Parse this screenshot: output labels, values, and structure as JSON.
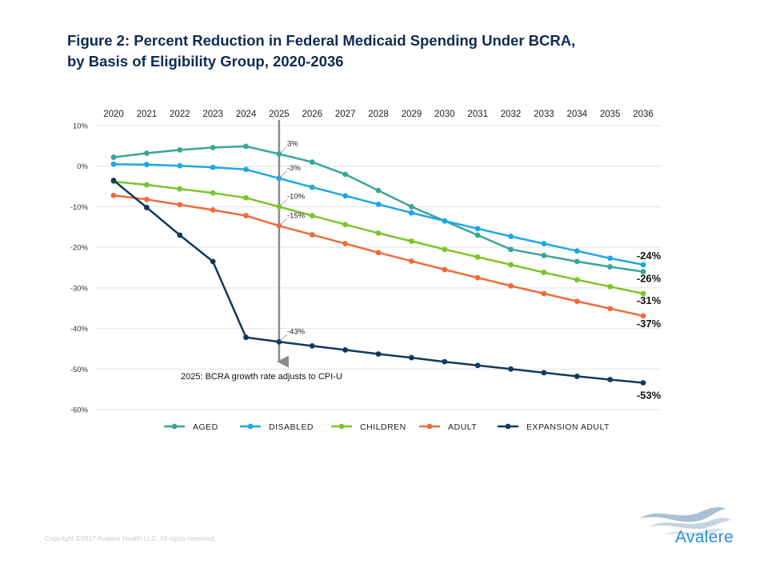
{
  "title_line1": "Figure 2: Percent Reduction in Federal Medicaid Spending Under BCRA,",
  "title_line2": "by Basis of Eligibility  Group, 2020-2036",
  "copyright": "Copyright ©2017  Avalere Health LLC. All rights reserved.",
  "brand": "Avalere",
  "colors": {
    "aged": "#3aa59a",
    "disabled": "#1ea7e4",
    "children": "#7ac52a",
    "adult": "#ef6c3a",
    "expansion_adult": "#12395e",
    "grid": "#e2e2e2",
    "marker_line": "#8c8c8c",
    "title": "#0f2b52"
  },
  "chart_data": {
    "type": "line",
    "title": "Figure 2: Percent Reduction in Federal Medicaid Spending Under BCRA, by Basis of Eligibility Group, 2020-2036",
    "x": [
      "2020",
      "2021",
      "2022",
      "2023",
      "2024",
      "2025",
      "2026",
      "2027",
      "2028",
      "2029",
      "2030",
      "2031",
      "2032",
      "2033",
      "2034",
      "2035",
      "2036"
    ],
    "xaxis_position": "top",
    "ylim": [
      -60,
      10
    ],
    "yticks": [
      10,
      0,
      -10,
      -20,
      -30,
      -40,
      -50,
      -60
    ],
    "ytick_labels": [
      "10%",
      "0%",
      "-10%",
      "-20%",
      "-30%",
      "-40%",
      "-50%",
      "-60%"
    ],
    "grid": true,
    "legend_position": "bottom",
    "series": [
      {
        "key": "aged",
        "name": "AGED",
        "values": [
          2.2,
          3.2,
          4.0,
          4.6,
          4.9,
          3.0,
          1.0,
          -2.0,
          -6.0,
          -10.0,
          -13.5,
          -17.0,
          -20.5,
          -22.0,
          -23.5,
          -24.8,
          -26.0
        ],
        "end_label": "-26%"
      },
      {
        "key": "disabled",
        "name": "DISABLED",
        "values": [
          0.5,
          0.4,
          0.1,
          -0.3,
          -0.8,
          -3.0,
          -5.2,
          -7.3,
          -9.4,
          -11.5,
          -13.5,
          -15.4,
          -17.3,
          -19.1,
          -20.9,
          -22.7,
          -24.3
        ],
        "end_label": "-24%"
      },
      {
        "key": "children",
        "name": "CHILDREN",
        "values": [
          -3.8,
          -4.6,
          -5.6,
          -6.6,
          -7.8,
          -10.0,
          -12.2,
          -14.4,
          -16.5,
          -18.5,
          -20.5,
          -22.4,
          -24.3,
          -26.2,
          -28.0,
          -29.7,
          -31.4
        ],
        "end_label": "-31%"
      },
      {
        "key": "adult",
        "name": "ADULT",
        "values": [
          -7.2,
          -8.2,
          -9.5,
          -10.8,
          -12.2,
          -14.7,
          -16.9,
          -19.1,
          -21.3,
          -23.4,
          -25.5,
          -27.5,
          -29.5,
          -31.4,
          -33.3,
          -35.1,
          -36.9
        ],
        "end_label": "-37%"
      },
      {
        "key": "expansion_adult",
        "name": "EXPANSION ADULT",
        "values": [
          -3.5,
          -10.2,
          -17.0,
          -23.5,
          -42.2,
          -43.3,
          -44.3,
          -45.3,
          -46.3,
          -47.2,
          -48.2,
          -49.1,
          -50.0,
          -50.9,
          -51.8,
          -52.6,
          -53.4
        ],
        "end_label": "-53%"
      }
    ],
    "annotations": {
      "year_marker": "2025",
      "marker_text": "2025: BCRA growth rate adjusts to CPI-U",
      "year_values": [
        {
          "series": "aged",
          "label": "3%"
        },
        {
          "series": "disabled",
          "label": "-3%"
        },
        {
          "series": "children",
          "label": "-10%"
        },
        {
          "series": "adult",
          "label": "-15%"
        },
        {
          "series": "expansion_adult",
          "label": "-43%"
        }
      ]
    }
  }
}
